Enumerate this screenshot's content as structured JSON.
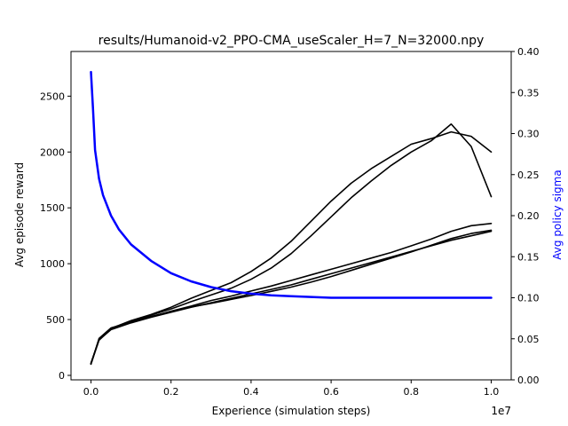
{
  "chart_data": {
    "type": "line",
    "title": "results/Humanoid-v2_PPO-CMA_useScaler_H=7_N=32000.npy",
    "xlabel": "Experience (simulation steps)",
    "x_offset_label": "1e7",
    "ylabel_left": "Avg episode reward",
    "ylabel_right": "Avg policy sigma",
    "xlim": [
      -0.05,
      1.05
    ],
    "ylim_left": [
      -40,
      2900
    ],
    "ylim_right": [
      0.0,
      0.4
    ],
    "x_ticks": [
      "0.0",
      "0.2",
      "0.4",
      "0.6",
      "0.8",
      "1.0"
    ],
    "y_ticks_left": [
      "0",
      "500",
      "1000",
      "1500",
      "2000",
      "2500"
    ],
    "y_ticks_right": [
      "0.00",
      "0.05",
      "0.10",
      "0.15",
      "0.20",
      "0.25",
      "0.30",
      "0.35",
      "0.40"
    ],
    "colors": {
      "reward": "#000000",
      "sigma": "#0000ff",
      "frame": "#000000"
    },
    "series": [
      {
        "axis": "left",
        "color": "#000000",
        "x": [
          0.0,
          0.02,
          0.05,
          0.1,
          0.15,
          0.2,
          0.25,
          0.3,
          0.35,
          0.4,
          0.45,
          0.5,
          0.55,
          0.6,
          0.65,
          0.7,
          0.75,
          0.8,
          0.85,
          0.9,
          0.95,
          1.0
        ],
        "y": [
          110,
          320,
          420,
          490,
          545,
          610,
          690,
          760,
          830,
          930,
          1050,
          1200,
          1380,
          1560,
          1720,
          1850,
          1960,
          2070,
          2120,
          2180,
          2140,
          2000
        ]
      },
      {
        "axis": "left",
        "color": "#000000",
        "x": [
          0.0,
          0.02,
          0.05,
          0.1,
          0.15,
          0.2,
          0.25,
          0.3,
          0.35,
          0.4,
          0.45,
          0.5,
          0.55,
          0.6,
          0.65,
          0.7,
          0.75,
          0.8,
          0.85,
          0.9,
          0.95,
          1.0
        ],
        "y": [
          100,
          330,
          425,
          480,
          540,
          595,
          660,
          720,
          780,
          860,
          960,
          1090,
          1250,
          1420,
          1590,
          1740,
          1880,
          2000,
          2100,
          2250,
          2050,
          1600
        ]
      },
      {
        "axis": "left",
        "color": "#000000",
        "x": [
          0.0,
          0.02,
          0.05,
          0.1,
          0.15,
          0.2,
          0.25,
          0.3,
          0.35,
          0.4,
          0.45,
          0.5,
          0.55,
          0.6,
          0.65,
          0.7,
          0.75,
          0.8,
          0.85,
          0.9,
          0.95,
          1.0
        ],
        "y": [
          105,
          315,
          415,
          475,
          525,
          575,
          620,
          670,
          710,
          755,
          800,
          850,
          900,
          950,
          1000,
          1050,
          1100,
          1160,
          1220,
          1290,
          1340,
          1360
        ]
      },
      {
        "axis": "left",
        "color": "#000000",
        "x": [
          0.0,
          0.02,
          0.05,
          0.1,
          0.15,
          0.2,
          0.25,
          0.3,
          0.35,
          0.4,
          0.45,
          0.5,
          0.55,
          0.6,
          0.65,
          0.7,
          0.75,
          0.8,
          0.85,
          0.9,
          0.95,
          1.0
        ],
        "y": [
          108,
          318,
          410,
          470,
          520,
          565,
          610,
          650,
          690,
          730,
          770,
          810,
          860,
          910,
          960,
          1010,
          1060,
          1110,
          1160,
          1210,
          1250,
          1290
        ]
      },
      {
        "axis": "left",
        "color": "#000000",
        "x": [
          0.0,
          0.02,
          0.05,
          0.1,
          0.15,
          0.2,
          0.25,
          0.3,
          0.35,
          0.4,
          0.45,
          0.5,
          0.55,
          0.6,
          0.65,
          0.7,
          0.75,
          0.8,
          0.85,
          0.9,
          0.95,
          1.0
        ],
        "y": [
          102,
          322,
          418,
          478,
          528,
          570,
          612,
          645,
          680,
          715,
          752,
          790,
          835,
          885,
          940,
          995,
          1050,
          1105,
          1165,
          1225,
          1270,
          1300
        ]
      },
      {
        "axis": "right",
        "color": "#0000ff",
        "x": [
          0.0,
          0.005,
          0.01,
          0.02,
          0.03,
          0.05,
          0.07,
          0.1,
          0.15,
          0.2,
          0.25,
          0.3,
          0.35,
          0.4,
          0.45,
          0.5,
          0.55,
          0.6,
          0.65,
          0.7,
          0.75,
          0.8,
          0.85,
          0.9,
          0.95,
          1.0
        ],
        "y": [
          0.375,
          0.33,
          0.28,
          0.245,
          0.225,
          0.2,
          0.183,
          0.165,
          0.145,
          0.13,
          0.12,
          0.113,
          0.108,
          0.105,
          0.103,
          0.102,
          0.101,
          0.1,
          0.1,
          0.1,
          0.1,
          0.1,
          0.1,
          0.1,
          0.1,
          0.1
        ]
      }
    ]
  }
}
